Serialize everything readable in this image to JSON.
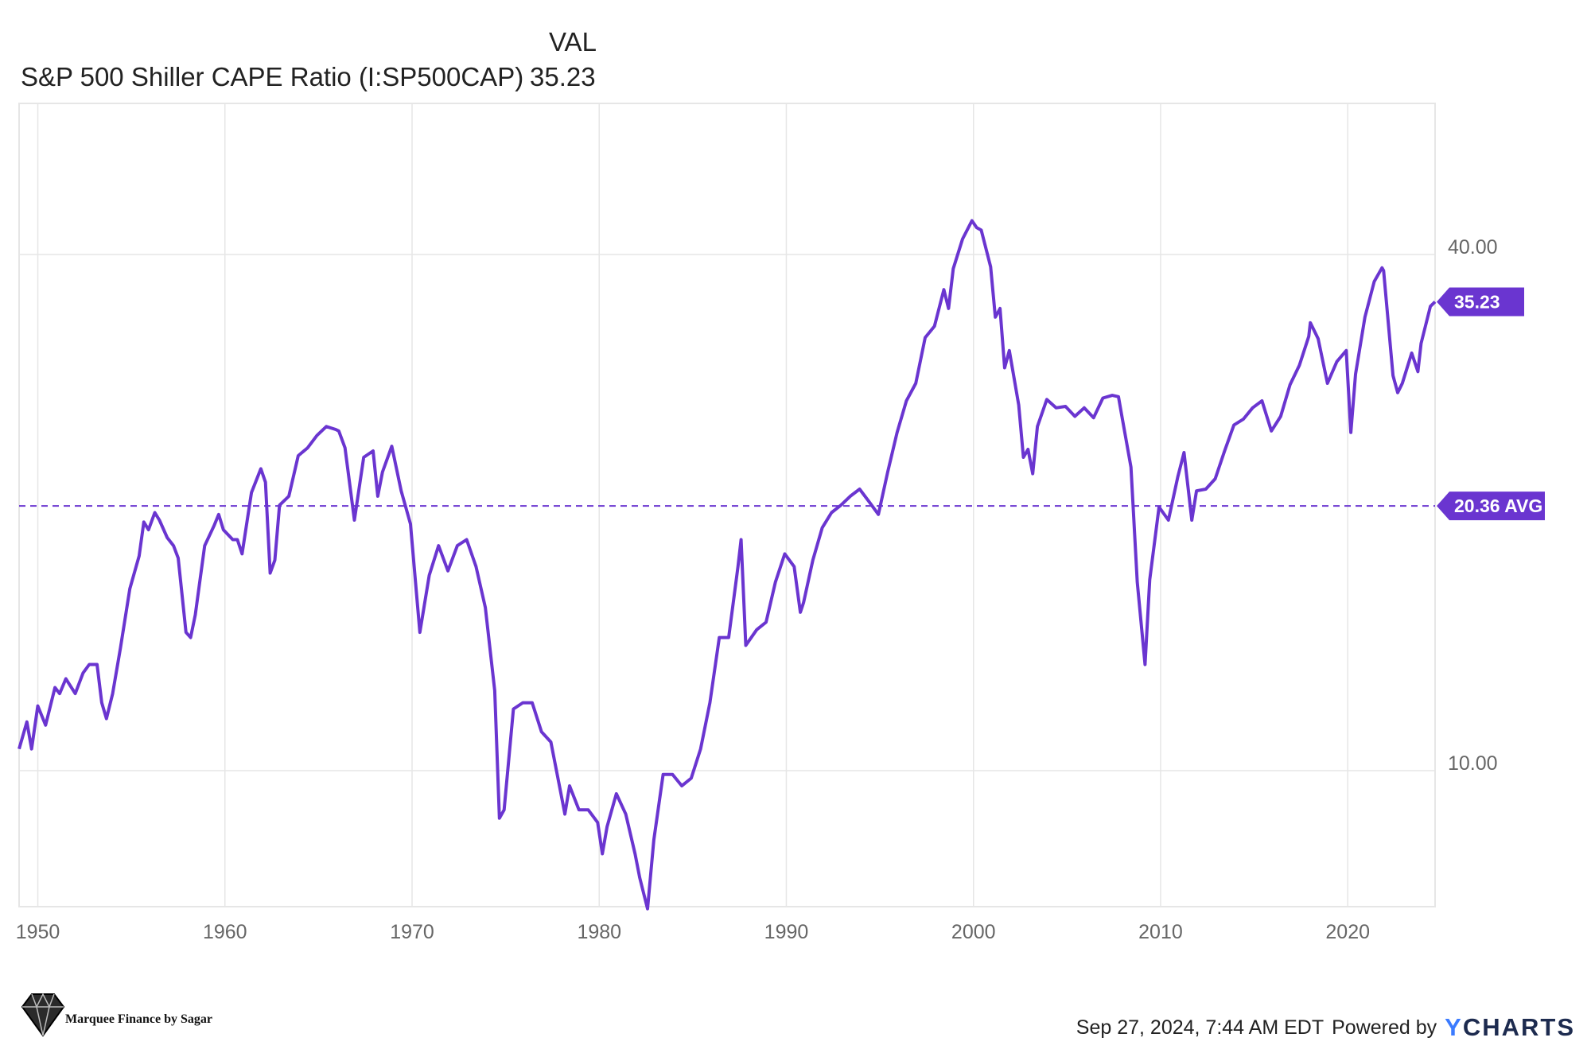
{
  "legend": {
    "val_header": "VAL",
    "series_name": "S&P 500 Shiller CAPE Ratio (I:SP500CAP)",
    "current_value": "35.23"
  },
  "flags": {
    "last_label": "35.23",
    "avg_label": "20.36 AVG"
  },
  "footer": {
    "timestamp": "Sep 27, 2024, 7:44 AM EDT",
    "powered_by": "Powered by",
    "brand_y": "Y",
    "brand_rest": "CHARTS"
  },
  "logo": {
    "text": "Marquee Finance by Sagar"
  },
  "colors": {
    "series": "#6a35d0",
    "avg": "#6a35d0",
    "grid": "#e6e6e6"
  },
  "chart_data": {
    "type": "line",
    "title": "",
    "xlabel": "",
    "ylabel": "",
    "y_scale": "log",
    "y_ticks": [
      10,
      40
    ],
    "y_tick_labels": [
      "10.00",
      "40.00"
    ],
    "x_ticks": [
      "1950",
      "1960",
      "1970",
      "1980",
      "1990",
      "2000",
      "2010",
      "2020"
    ],
    "xlim": [
      "1949-01",
      "2024-09"
    ],
    "average": 20.36,
    "last_value": 35.23,
    "grid": true,
    "series": [
      {
        "values": [
          [
            "1949-01",
            10.6
          ],
          [
            "1949-06",
            11.4
          ],
          [
            "1949-09",
            10.6
          ],
          [
            "1950-01",
            11.9
          ],
          [
            "1950-06",
            11.3
          ],
          [
            "1950-12",
            12.5
          ],
          [
            "1951-03",
            12.3
          ],
          [
            "1951-07",
            12.8
          ],
          [
            "1952-01",
            12.3
          ],
          [
            "1952-06",
            13.0
          ],
          [
            "1952-10",
            13.3
          ],
          [
            "1953-03",
            13.3
          ],
          [
            "1953-06",
            12.0
          ],
          [
            "1953-09",
            11.5
          ],
          [
            "1954-01",
            12.3
          ],
          [
            "1954-06",
            13.9
          ],
          [
            "1954-12",
            16.3
          ],
          [
            "1955-06",
            17.8
          ],
          [
            "1955-09",
            19.5
          ],
          [
            "1955-12",
            19.1
          ],
          [
            "1956-04",
            20.0
          ],
          [
            "1956-07",
            19.6
          ],
          [
            "1956-12",
            18.7
          ],
          [
            "1957-04",
            18.3
          ],
          [
            "1957-07",
            17.7
          ],
          [
            "1957-12",
            14.5
          ],
          [
            "1958-03",
            14.3
          ],
          [
            "1958-06",
            15.2
          ],
          [
            "1958-12",
            18.3
          ],
          [
            "1959-06",
            19.3
          ],
          [
            "1959-09",
            19.9
          ],
          [
            "1959-12",
            19.1
          ],
          [
            "1960-06",
            18.6
          ],
          [
            "1960-09",
            18.6
          ],
          [
            "1960-12",
            17.9
          ],
          [
            "1961-06",
            21.1
          ],
          [
            "1961-12",
            22.5
          ],
          [
            "1962-03",
            21.7
          ],
          [
            "1962-06",
            17.0
          ],
          [
            "1962-09",
            17.6
          ],
          [
            "1962-12",
            20.4
          ],
          [
            "1963-06",
            20.9
          ],
          [
            "1963-12",
            23.3
          ],
          [
            "1964-06",
            23.8
          ],
          [
            "1964-12",
            24.6
          ],
          [
            "1965-06",
            25.2
          ],
          [
            "1965-12",
            25.0
          ],
          [
            "1966-02",
            24.9
          ],
          [
            "1966-06",
            23.8
          ],
          [
            "1966-10",
            20.9
          ],
          [
            "1966-12",
            19.6
          ],
          [
            "1967-06",
            23.2
          ],
          [
            "1967-12",
            23.6
          ],
          [
            "1968-03",
            20.9
          ],
          [
            "1968-06",
            22.3
          ],
          [
            "1968-12",
            23.9
          ],
          [
            "1969-06",
            21.2
          ],
          [
            "1969-12",
            19.4
          ],
          [
            "1970-06",
            14.5
          ],
          [
            "1970-12",
            16.9
          ],
          [
            "1971-06",
            18.3
          ],
          [
            "1971-12",
            17.1
          ],
          [
            "1972-06",
            18.3
          ],
          [
            "1972-12",
            18.6
          ],
          [
            "1973-06",
            17.3
          ],
          [
            "1973-12",
            15.5
          ],
          [
            "1974-06",
            12.4
          ],
          [
            "1974-09",
            8.8
          ],
          [
            "1974-12",
            9.0
          ],
          [
            "1975-06",
            11.8
          ],
          [
            "1975-12",
            12.0
          ],
          [
            "1976-06",
            12.0
          ],
          [
            "1976-12",
            11.1
          ],
          [
            "1977-06",
            10.8
          ],
          [
            "1977-12",
            9.5
          ],
          [
            "1978-03",
            8.9
          ],
          [
            "1978-06",
            9.6
          ],
          [
            "1978-12",
            9.0
          ],
          [
            "1979-06",
            9.0
          ],
          [
            "1979-12",
            8.7
          ],
          [
            "1980-03",
            8.0
          ],
          [
            "1980-06",
            8.6
          ],
          [
            "1980-12",
            9.4
          ],
          [
            "1981-06",
            8.9
          ],
          [
            "1981-12",
            8.0
          ],
          [
            "1982-03",
            7.5
          ],
          [
            "1982-08",
            6.9
          ],
          [
            "1982-12",
            8.3
          ],
          [
            "1983-06",
            9.9
          ],
          [
            "1983-12",
            9.9
          ],
          [
            "1984-06",
            9.6
          ],
          [
            "1984-12",
            9.8
          ],
          [
            "1985-06",
            10.6
          ],
          [
            "1985-12",
            12.0
          ],
          [
            "1986-06",
            14.3
          ],
          [
            "1986-12",
            14.3
          ],
          [
            "1987-06",
            17.3
          ],
          [
            "1987-08",
            18.6
          ],
          [
            "1987-11",
            14.0
          ],
          [
            "1988-06",
            14.6
          ],
          [
            "1988-12",
            14.9
          ],
          [
            "1989-06",
            16.6
          ],
          [
            "1989-12",
            17.9
          ],
          [
            "1990-06",
            17.3
          ],
          [
            "1990-10",
            15.3
          ],
          [
            "1990-12",
            15.7
          ],
          [
            "1991-06",
            17.6
          ],
          [
            "1991-12",
            19.2
          ],
          [
            "1992-06",
            20.0
          ],
          [
            "1992-12",
            20.4
          ],
          [
            "1993-06",
            20.9
          ],
          [
            "1993-12",
            21.3
          ],
          [
            "1994-06",
            20.6
          ],
          [
            "1994-12",
            19.9
          ],
          [
            "1995-06",
            22.3
          ],
          [
            "1995-12",
            24.8
          ],
          [
            "1996-06",
            27.0
          ],
          [
            "1996-12",
            28.3
          ],
          [
            "1997-06",
            32.0
          ],
          [
            "1997-12",
            33.0
          ],
          [
            "1998-06",
            36.4
          ],
          [
            "1998-09",
            34.6
          ],
          [
            "1998-12",
            38.5
          ],
          [
            "1999-06",
            41.7
          ],
          [
            "1999-12",
            43.8
          ],
          [
            "2000-03",
            43.0
          ],
          [
            "2000-06",
            42.7
          ],
          [
            "2000-12",
            38.7
          ],
          [
            "2001-03",
            33.8
          ],
          [
            "2001-06",
            34.6
          ],
          [
            "2001-09",
            29.5
          ],
          [
            "2001-12",
            30.9
          ],
          [
            "2002-06",
            26.7
          ],
          [
            "2002-09",
            23.2
          ],
          [
            "2002-12",
            23.7
          ],
          [
            "2003-03",
            22.2
          ],
          [
            "2003-06",
            25.2
          ],
          [
            "2003-12",
            27.1
          ],
          [
            "2004-06",
            26.5
          ],
          [
            "2004-12",
            26.6
          ],
          [
            "2005-06",
            25.9
          ],
          [
            "2005-12",
            26.5
          ],
          [
            "2006-06",
            25.8
          ],
          [
            "2006-12",
            27.2
          ],
          [
            "2007-06",
            27.4
          ],
          [
            "2007-10",
            27.3
          ],
          [
            "2007-12",
            26.0
          ],
          [
            "2008-06",
            22.6
          ],
          [
            "2008-10",
            16.6
          ],
          [
            "2009-03",
            13.3
          ],
          [
            "2009-06",
            16.7
          ],
          [
            "2009-12",
            20.3
          ],
          [
            "2010-06",
            19.6
          ],
          [
            "2010-12",
            22.0
          ],
          [
            "2011-04",
            23.5
          ],
          [
            "2011-09",
            19.6
          ],
          [
            "2011-12",
            21.2
          ],
          [
            "2012-06",
            21.3
          ],
          [
            "2012-12",
            21.9
          ],
          [
            "2013-06",
            23.6
          ],
          [
            "2013-12",
            25.3
          ],
          [
            "2014-06",
            25.7
          ],
          [
            "2014-12",
            26.5
          ],
          [
            "2015-06",
            27.0
          ],
          [
            "2015-12",
            24.9
          ],
          [
            "2016-06",
            25.9
          ],
          [
            "2016-12",
            28.2
          ],
          [
            "2017-06",
            29.7
          ],
          [
            "2017-12",
            32.1
          ],
          [
            "2018-01",
            33.3
          ],
          [
            "2018-06",
            31.9
          ],
          [
            "2018-12",
            28.3
          ],
          [
            "2019-06",
            30.0
          ],
          [
            "2019-12",
            30.9
          ],
          [
            "2020-03",
            24.8
          ],
          [
            "2020-06",
            29.0
          ],
          [
            "2020-12",
            33.8
          ],
          [
            "2021-06",
            37.2
          ],
          [
            "2021-11",
            38.6
          ],
          [
            "2021-12",
            38.3
          ],
          [
            "2022-06",
            28.9
          ],
          [
            "2022-09",
            27.6
          ],
          [
            "2022-12",
            28.3
          ],
          [
            "2023-06",
            30.7
          ],
          [
            "2023-10",
            29.2
          ],
          [
            "2023-12",
            31.5
          ],
          [
            "2024-06",
            34.8
          ],
          [
            "2024-09",
            35.23
          ]
        ]
      }
    ]
  }
}
